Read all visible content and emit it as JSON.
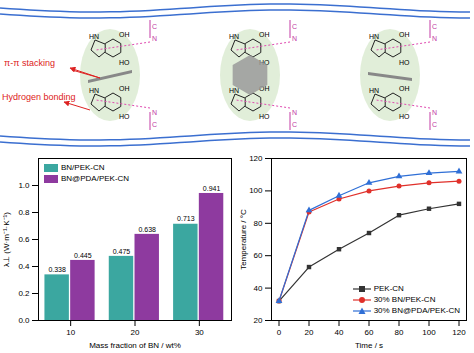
{
  "diagram": {
    "labels": [
      "π-π stacking",
      "Hydrogen bonding"
    ],
    "nitrile": [
      "C",
      "N"
    ],
    "groups": [
      "HO",
      "OH",
      "HN"
    ]
  },
  "chart_data": [
    {
      "type": "bar",
      "x_label": "Mass fraction of BN / wt%",
      "y_label": "λ⊥ (W·m⁻¹·K⁻¹)",
      "categories": [
        10,
        20,
        30
      ],
      "series": [
        {
          "name": "BN/PEK-CN",
          "color": "#3ba7a0",
          "values": [
            0.338,
            0.475,
            0.713
          ]
        },
        {
          "name": "BN@PDA/PEK-CN",
          "color": "#8e3a9f",
          "values": [
            0.445,
            0.638,
            0.941
          ]
        }
      ],
      "ylim": [
        0,
        1.2
      ],
      "yticks": [
        {
          "value": 0,
          "label": "0.0"
        },
        0.2,
        0.4,
        0.6,
        0.8,
        {
          "value": 1,
          "label": "1.0"
        }
      ],
      "data_labels": true,
      "legend": "upper left"
    },
    {
      "type": "line",
      "x_label": "Time / s",
      "y_label": "Temperature / °C",
      "x": [
        0,
        20,
        40,
        60,
        80,
        100,
        120
      ],
      "series": [
        {
          "name": "PEK-CN",
          "color": "#333333",
          "marker": "square",
          "values": [
            32,
            53,
            64,
            74,
            85,
            89,
            92
          ]
        },
        {
          "name": "30% BN/PEK-CN",
          "color": "#e0302a",
          "marker": "circle",
          "values": [
            32,
            87,
            95,
            100,
            103,
            105,
            106
          ]
        },
        {
          "name": "30% BN@PDA/PEK-CN",
          "color": "#2f6fd6",
          "marker": "triangle",
          "values": [
            32,
            88,
            97,
            105,
            109,
            111,
            112
          ]
        }
      ],
      "xlim": [
        -5,
        125
      ],
      "xticks": [
        0,
        20,
        40,
        60,
        80,
        100,
        120
      ],
      "ylim": [
        20,
        120
      ],
      "yticks": [
        20,
        40,
        60,
        80,
        100,
        120
      ],
      "legend": "lower right"
    }
  ]
}
